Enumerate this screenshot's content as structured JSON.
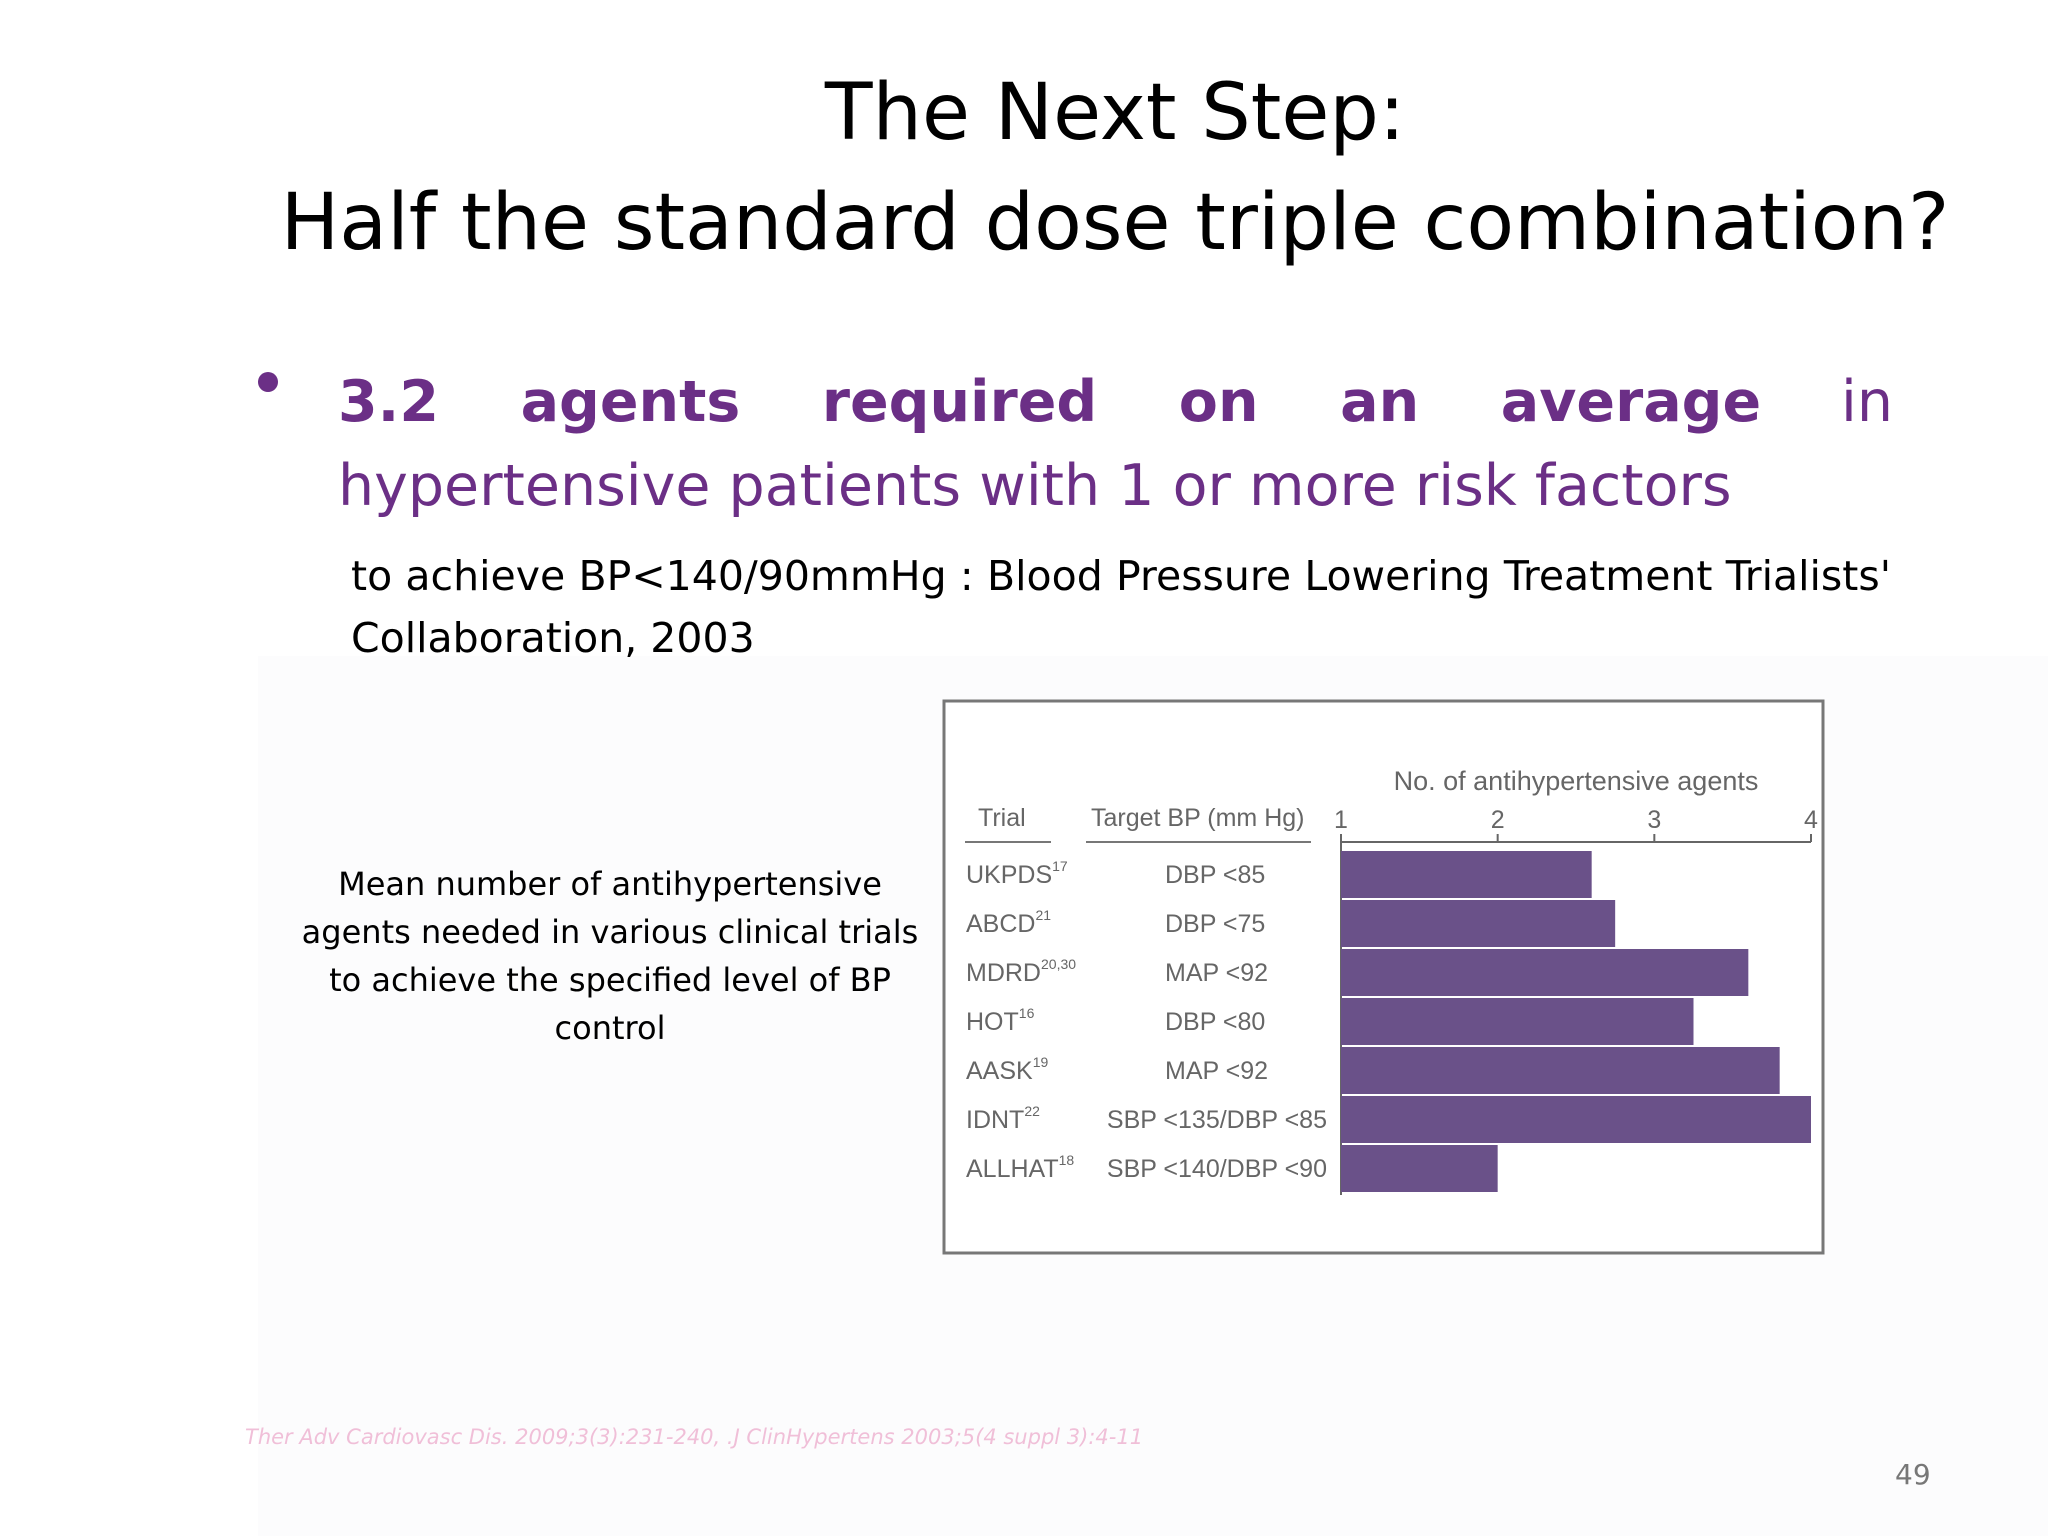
{
  "slide": {
    "title_line1": "The Next Step:",
    "title_line2": "Half the standard dose triple combination?",
    "bullet_bold": "3.2 agents required on an average",
    "bullet_rest": " in hypertensive patients with 1 or more risk factors",
    "sub_text": "to achieve BP<140/90mmHg : Blood Pressure Lowering Treatment Trialists' Collaboration, 2003",
    "caption": "Mean number of antihypertensive agents needed in various clinical trials to achieve the specified level of BP control",
    "footer_ref": "Ther Adv Cardiovasc Dis. 2009;3(3):231-240, .J ClinHypertens 2003;5(4 suppl 3):4-11",
    "page_number": "49",
    "colors": {
      "accent": "#6b2f86",
      "bar": "#6a5189",
      "chart_text": "#666666"
    }
  },
  "chart_data": {
    "type": "bar",
    "orientation": "horizontal",
    "axis_title": "No. of antihypertensive agents",
    "column_headers": [
      "Trial",
      "Target BP (mm Hg)"
    ],
    "xlim": [
      1,
      4
    ],
    "xticks": [
      "1",
      "2",
      "3",
      "4"
    ],
    "rows": [
      {
        "trial": "UKPDS",
        "ref": "17",
        "target": "DBP <85",
        "value": 2.6
      },
      {
        "trial": "ABCD",
        "ref": "21",
        "target": "DBP <75",
        "value": 2.75
      },
      {
        "trial": "MDRD",
        "ref": "20,30",
        "target": "MAP <92",
        "value": 3.6
      },
      {
        "trial": "HOT",
        "ref": "16",
        "target": "DBP <80",
        "value": 3.25
      },
      {
        "trial": "AASK",
        "ref": "19",
        "target": "MAP <92",
        "value": 3.8
      },
      {
        "trial": "IDNT",
        "ref": "22",
        "target": "SBP <135/DBP <85",
        "value": 4.0
      },
      {
        "trial": "ALLHAT",
        "ref": "18",
        "target": "SBP <140/DBP <90",
        "value": 2.0
      }
    ]
  }
}
